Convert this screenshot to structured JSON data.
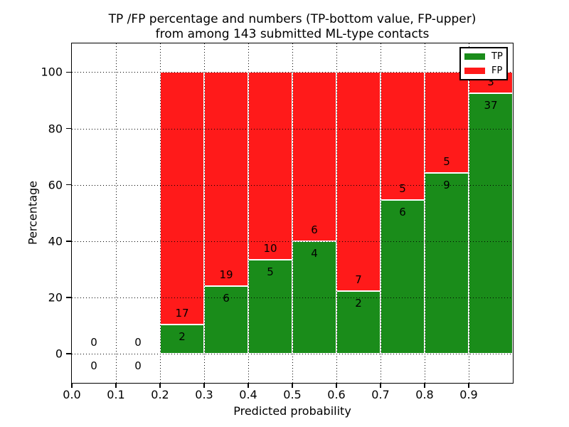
{
  "chart_data": {
    "type": "bar",
    "stacked": true,
    "title": "TP /FP percentage and numbers (TP-bottom value, FP-upper)\nfrom among 143 submitted ML-type contacts",
    "title_lines": [
      "TP /FP percentage and numbers (TP-bottom value, FP-upper)",
      "from among 143 submitted ML-type contacts"
    ],
    "xlabel": "Predicted probability",
    "ylabel": "Percentage",
    "xlim": [
      0,
      1.0
    ],
    "ylim": [
      -10.3,
      110.2
    ],
    "grid": "dotted black, both axes",
    "bar_edge_color": "#ffffff",
    "total_contacts": 143,
    "colors": {
      "tp": "#1a8c1a",
      "fp": "#ff1a1a"
    },
    "x_ticks": [
      {
        "value": 0.0,
        "label": "0.0"
      },
      {
        "value": 0.1,
        "label": "0.1"
      },
      {
        "value": 0.2,
        "label": "0.2"
      },
      {
        "value": 0.3,
        "label": "0.3"
      },
      {
        "value": 0.4,
        "label": "0.4"
      },
      {
        "value": 0.5,
        "label": "0.5"
      },
      {
        "value": 0.6,
        "label": "0.6"
      },
      {
        "value": 0.7,
        "label": "0.7"
      },
      {
        "value": 0.8,
        "label": "0.8"
      },
      {
        "value": 0.9,
        "label": "0.9"
      }
    ],
    "y_ticks": [
      {
        "value": 0,
        "label": "0"
      },
      {
        "value": 20,
        "label": "20"
      },
      {
        "value": 40,
        "label": "40"
      },
      {
        "value": 60,
        "label": "60"
      },
      {
        "value": 80,
        "label": "80"
      },
      {
        "value": 100,
        "label": "100"
      }
    ],
    "bins": [
      {
        "range": [
          0.0,
          0.1
        ],
        "tp": 0,
        "fp": 0
      },
      {
        "range": [
          0.1,
          0.2
        ],
        "tp": 0,
        "fp": 0
      },
      {
        "range": [
          0.2,
          0.3
        ],
        "tp": 2,
        "fp": 17
      },
      {
        "range": [
          0.3,
          0.4
        ],
        "tp": 6,
        "fp": 19
      },
      {
        "range": [
          0.4,
          0.5
        ],
        "tp": 5,
        "fp": 10
      },
      {
        "range": [
          0.5,
          0.6
        ],
        "tp": 4,
        "fp": 6
      },
      {
        "range": [
          0.6,
          0.7
        ],
        "tp": 2,
        "fp": 7
      },
      {
        "range": [
          0.7,
          0.8
        ],
        "tp": 6,
        "fp": 5
      },
      {
        "range": [
          0.8,
          0.9
        ],
        "tp": 9,
        "fp": 5
      },
      {
        "range": [
          0.9,
          1.0
        ],
        "tp": 37,
        "fp": 3
      }
    ],
    "legend": {
      "position": "upper-right",
      "entries": [
        {
          "series": "tp",
          "label": "TP",
          "color": "#1a8c1a"
        },
        {
          "series": "fp",
          "label": "FP",
          "color": "#ff1a1a"
        }
      ]
    }
  }
}
